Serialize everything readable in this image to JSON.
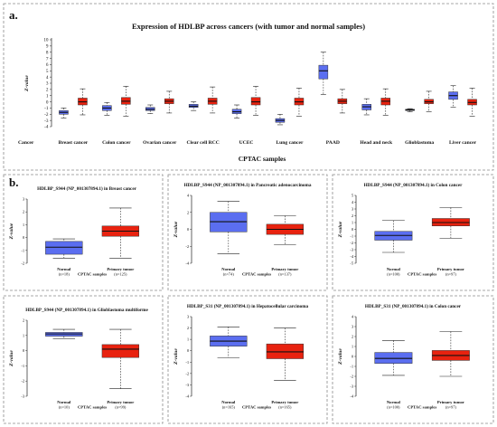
{
  "panel_a_label": "a.",
  "panel_b_label": "b.",
  "colors": {
    "normal": "#5b6ef0",
    "tumor": "#e8220f"
  },
  "chart_data": [
    {
      "type": "box",
      "title": "Expression of HDLBP across cancers (with tumor and normal samples)",
      "ylabel": "Z-value",
      "xlabel": "CPTAC samples",
      "xprefix": "Cancer",
      "ylim": [
        -4,
        10
      ],
      "yticks": [
        -4,
        -3,
        -2,
        -1,
        0,
        1,
        2,
        3,
        4,
        5,
        6,
        7,
        8,
        9,
        10
      ],
      "categories": [
        "Breast cancer",
        "Colon cancer",
        "Ovarian cancer",
        "Clear cell RCC",
        "UCEC",
        "Lung cancer",
        "PAAD",
        "Head and neck",
        "Glioblastoma",
        "Liver cancer"
      ],
      "series": [
        {
          "name": "Normal",
          "boxes": [
            {
              "min": -2.6,
              "q1": -2.0,
              "median": -1.7,
              "q3": -1.4,
              "max": -1.0
            },
            {
              "min": -2.2,
              "q1": -1.4,
              "median": -1.0,
              "q3": -0.6,
              "max": -0.1
            },
            {
              "min": -1.9,
              "q1": -1.4,
              "median": -1.2,
              "q3": -0.9,
              "max": -0.5
            },
            {
              "min": -1.4,
              "q1": -0.9,
              "median": -0.7,
              "q3": -0.4,
              "max": 0.0
            },
            {
              "min": -2.6,
              "q1": -1.9,
              "median": -1.6,
              "q3": -1.2,
              "max": -0.5
            },
            {
              "min": -3.7,
              "q1": -3.3,
              "median": -3.0,
              "q3": -2.7,
              "max": -2.0
            },
            {
              "min": 1.2,
              "q1": 3.7,
              "median": 5.0,
              "q3": 5.9,
              "max": 8.0
            },
            {
              "min": -2.1,
              "q1": -1.3,
              "median": -0.8,
              "q3": -0.4,
              "max": 0.5
            },
            {
              "min": -1.6,
              "q1": -1.4,
              "median": -1.3,
              "q3": -1.2,
              "max": -1.1
            },
            {
              "min": -0.9,
              "q1": 0.4,
              "median": 1.0,
              "q3": 1.6,
              "max": 2.6
            }
          ]
        },
        {
          "name": "Primary tumor",
          "boxes": [
            {
              "min": -2.1,
              "q1": -0.5,
              "median": 0.0,
              "q3": 0.6,
              "max": 2.1
            },
            {
              "min": -2.3,
              "q1": -0.4,
              "median": 0.1,
              "q3": 0.7,
              "max": 2.5
            },
            {
              "min": -1.8,
              "q1": -0.3,
              "median": 0.1,
              "q3": 0.5,
              "max": 1.7
            },
            {
              "min": -1.8,
              "q1": -0.4,
              "median": 0.1,
              "q3": 0.6,
              "max": 2.4
            },
            {
              "min": -2.2,
              "q1": -0.5,
              "median": 0.0,
              "q3": 0.7,
              "max": 2.5
            },
            {
              "min": -2.3,
              "q1": -0.5,
              "median": 0.0,
              "q3": 0.6,
              "max": 2.2
            },
            {
              "min": -1.8,
              "q1": -0.3,
              "median": 0.1,
              "q3": 0.5,
              "max": 2.0
            },
            {
              "min": -2.2,
              "q1": -0.5,
              "median": 0.1,
              "q3": 0.6,
              "max": 2.1
            },
            {
              "min": -1.6,
              "q1": -0.3,
              "median": 0.0,
              "q3": 0.4,
              "max": 1.7
            },
            {
              "min": -2.3,
              "q1": -0.5,
              "median": -0.1,
              "q3": 0.4,
              "max": 2.2
            }
          ]
        }
      ]
    },
    {
      "type": "box",
      "title": "HDLBP_S944 (NP_001307894.1) in Breast cancer",
      "ylabel": "Z-value",
      "xlabel": "CPTAC samples",
      "ylim": [
        -2,
        3
      ],
      "yticks": [
        -2,
        -1,
        0,
        1,
        2,
        3
      ],
      "groups": [
        {
          "name": "Normal",
          "count": "(n=18)",
          "min": -1.6,
          "q1": -1.3,
          "median": -0.75,
          "q3": -0.3,
          "max": -0.1
        },
        {
          "name": "Primary tumor",
          "count": "(n=125)",
          "min": -1.6,
          "q1": 0.1,
          "median": 0.5,
          "q3": 0.9,
          "max": 2.3
        }
      ]
    },
    {
      "type": "box",
      "title": "HDLBP_S944 (NP_001307894.1) in Pancreatic adenocarcinoma",
      "ylabel": "Z-value",
      "xlabel": "CPTAC samples",
      "ylim": [
        -4,
        4
      ],
      "yticks": [
        -4,
        -2,
        0,
        2,
        4
      ],
      "groups": [
        {
          "name": "Normal",
          "count": "(n=74)",
          "min": -2.9,
          "q1": -0.3,
          "median": 0.9,
          "q3": 2.0,
          "max": 3.3
        },
        {
          "name": "Primary tumor",
          "count": "(n=137)",
          "min": -1.8,
          "q1": -0.6,
          "median": 0.0,
          "q3": 0.6,
          "max": 1.6
        }
      ]
    },
    {
      "type": "box",
      "title": "HDLBP_S944 (NP_001307894.1) in Colon cancer",
      "ylabel": "Z-value",
      "xlabel": "CPTAC samples",
      "ylim": [
        -5,
        5
      ],
      "yticks": [
        -5,
        -4,
        -3,
        -2,
        -1,
        0,
        1,
        2,
        3,
        4,
        5
      ],
      "groups": [
        {
          "name": "Normal",
          "count": "(n=100)",
          "min": -3.4,
          "q1": -1.6,
          "median": -0.9,
          "q3": -0.3,
          "max": 1.3
        },
        {
          "name": "Primary tumor",
          "count": "(n=97)",
          "min": -1.3,
          "q1": 0.5,
          "median": 1.0,
          "q3": 1.6,
          "max": 3.2
        }
      ]
    },
    {
      "type": "box",
      "title": "HDLBP_S944 (NP_001307894.1) in Glioblastoma multiforme",
      "ylabel": "Z-value",
      "xlabel": "CPTAC samples",
      "ylim": [
        -3,
        2
      ],
      "yticks": [
        -3,
        -2,
        -1,
        0,
        1,
        2
      ],
      "groups": [
        {
          "name": "Normal",
          "count": "(n=10)",
          "min": 0.8,
          "q1": 0.95,
          "median": 1.1,
          "q3": 1.2,
          "max": 1.4
        },
        {
          "name": "Primary tumor",
          "count": "(n=99)",
          "min": -2.5,
          "q1": -0.45,
          "median": 0.1,
          "q3": 0.4,
          "max": 1.4
        }
      ]
    },
    {
      "type": "box",
      "title": "HDLBP_S31 (NP_001307894.1) in Hepatocellular carcinoma",
      "ylabel": "Z-value",
      "xlabel": "CPTAC samples",
      "ylim": [
        -4,
        3
      ],
      "yticks": [
        -4,
        -3,
        -2,
        -1,
        0,
        1,
        2,
        3
      ],
      "groups": [
        {
          "name": "Normal",
          "count": "(n=165)",
          "min": -0.6,
          "q1": 0.4,
          "median": 0.85,
          "q3": 1.3,
          "max": 2.1
        },
        {
          "name": "Primary tumor",
          "count": "(n=165)",
          "min": -2.6,
          "q1": -0.7,
          "median": -0.1,
          "q3": 0.6,
          "max": 2.0
        }
      ]
    },
    {
      "type": "box",
      "title": "HDLBP_S31 (NP_001307894.1) in Colon cancer",
      "ylabel": "Z-value",
      "xlabel": "CPTAC samples",
      "ylim": [
        -4,
        4
      ],
      "yticks": [
        -4,
        -3,
        -2,
        -1,
        0,
        1,
        2,
        3,
        4
      ],
      "groups": [
        {
          "name": "Normal",
          "count": "(n=100)",
          "min": -1.9,
          "q1": -0.7,
          "median": -0.2,
          "q3": 0.4,
          "max": 1.6
        },
        {
          "name": "Primary tumor",
          "count": "(n=97)",
          "min": -2.0,
          "q1": -0.4,
          "median": 0.1,
          "q3": 0.6,
          "max": 2.5
        }
      ]
    }
  ]
}
